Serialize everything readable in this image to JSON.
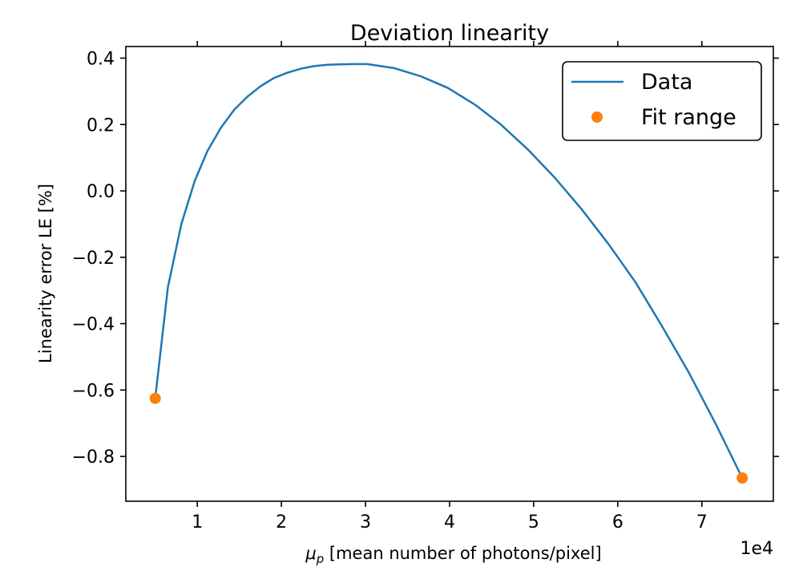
{
  "chart_data": {
    "type": "line",
    "title": "Deviation linearity",
    "xlabel_symbol": "μ",
    "xlabel_subscript": "p",
    "xlabel_rest": " [mean number of photons/pixel]",
    "ylabel": "Linearity error LE [%]",
    "x_offset_label": "1e4",
    "xlim": [
      1500,
      78500
    ],
    "ylim": [
      -0.935,
      0.435
    ],
    "xticks": [
      10000,
      20000,
      30000,
      40000,
      50000,
      60000,
      70000
    ],
    "xtick_labels": [
      "1",
      "2",
      "3",
      "4",
      "5",
      "6",
      "7"
    ],
    "yticks": [
      -0.8,
      -0.6,
      -0.4,
      -0.2,
      0.0,
      0.2,
      0.4
    ],
    "ytick_labels": [
      "−0.8",
      "−0.6",
      "−0.4",
      "−0.2",
      "0.0",
      "0.2",
      "0.4"
    ],
    "grid": false,
    "legend_position": "top-right",
    "series": [
      {
        "name": "Data",
        "kind": "line",
        "color": "#1f77b4",
        "x": [
          5000,
          6500,
          8100,
          9700,
          11200,
          12800,
          14400,
          16000,
          17500,
          19100,
          20700,
          22300,
          23900,
          25500,
          27000,
          28600,
          30200,
          33400,
          36600,
          39800,
          43000,
          46100,
          49300,
          52500,
          55700,
          58900,
          62100,
          65200,
          68400,
          71600,
          74800
        ],
        "y": [
          -0.625,
          -0.29,
          -0.1,
          0.03,
          0.12,
          0.19,
          0.245,
          0.285,
          0.315,
          0.34,
          0.356,
          0.368,
          0.376,
          0.38,
          0.381,
          0.382,
          0.382,
          0.37,
          0.345,
          0.31,
          0.26,
          0.2,
          0.125,
          0.04,
          -0.055,
          -0.16,
          -0.275,
          -0.405,
          -0.545,
          -0.7,
          -0.865
        ]
      },
      {
        "name": "Fit range",
        "kind": "points",
        "color": "#ff7f0e",
        "x": [
          5000,
          74800
        ],
        "y": [
          -0.625,
          -0.865
        ]
      }
    ]
  }
}
